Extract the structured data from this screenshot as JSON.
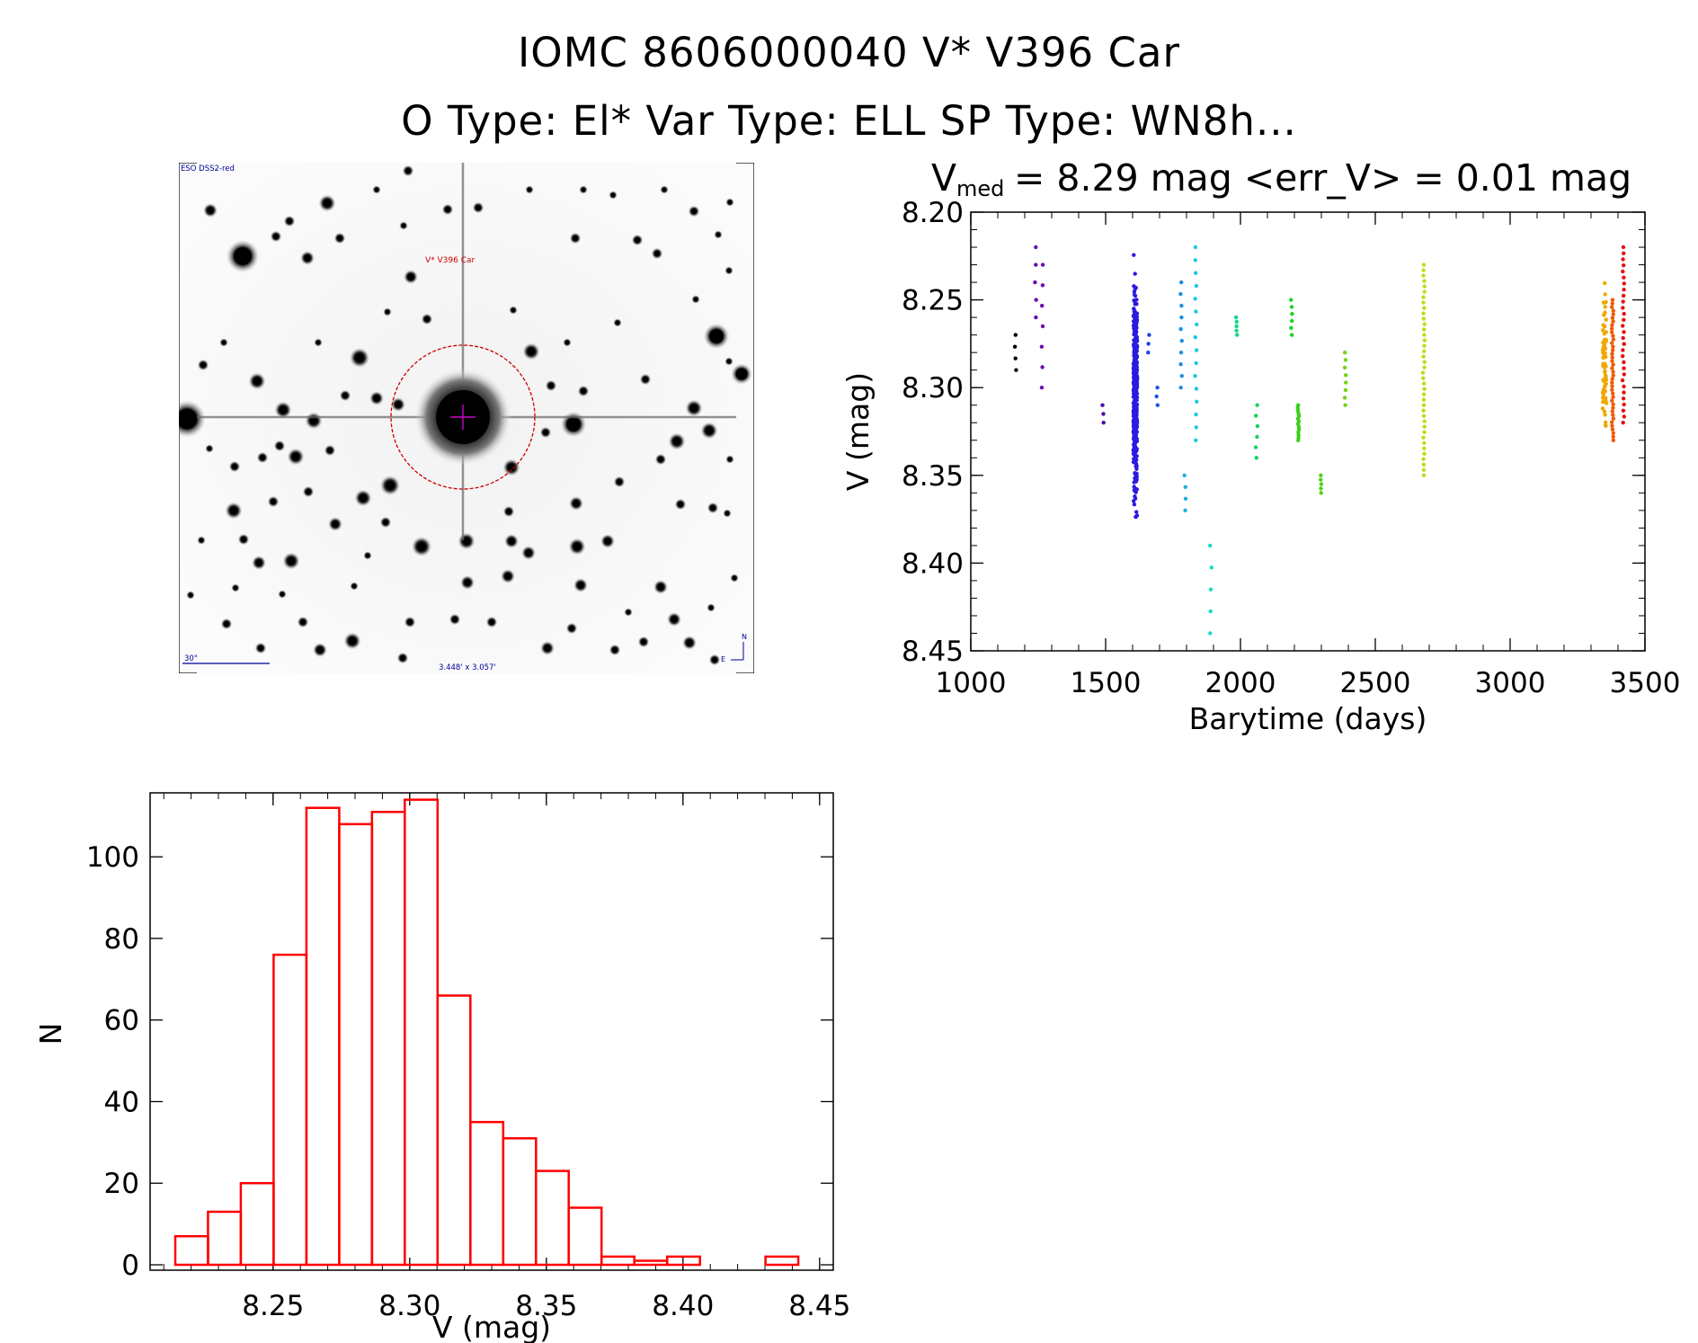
{
  "header": {
    "line1": "IOMC 8606000040    V* V396 Car",
    "line2": "O Type: El*   Var Type: ELL   SP Type: WN8h..."
  },
  "finder_chart": {
    "survey_label": "ESO DSS2-red",
    "target_label": "V* V396 Car",
    "scale_label": "30\"",
    "fov_label": "3.448' x 3.057'",
    "compass_n": "N",
    "compass_e": "E",
    "circle_color": "#cc0000",
    "crosshair_color": "#cc00cc",
    "label_color": "#000099"
  },
  "chart_data": [
    {
      "type": "scatter",
      "name": "light curve",
      "title_parts": {
        "prefix": "V",
        "subscript": "med",
        "rest": "= 8.29 mag <err_V> = 0.01 mag"
      },
      "xlabel": "Barytime (days)",
      "ylabel": "V (mag)",
      "xlim": [
        1000,
        3500
      ],
      "ylim": [
        8.45,
        8.2
      ],
      "y_inverted": true,
      "xticks": [
        1000,
        1500,
        2000,
        2500,
        3000,
        3500
      ],
      "yticks": [
        "8.20",
        "8.25",
        "8.30",
        "8.35",
        "8.40",
        "8.45"
      ],
      "color_by": "time (rainbow: purple to red)",
      "clusters": [
        {
          "x": 1165,
          "y_min": 8.27,
          "y_max": 8.29,
          "n": 4,
          "color": "#000000"
        },
        {
          "x": 1240,
          "y_min": 8.22,
          "y_max": 8.26,
          "n": 5,
          "color": "#6a0dad"
        },
        {
          "x": 1265,
          "y_min": 8.23,
          "y_max": 8.3,
          "n": 7,
          "color": "#6a0dad"
        },
        {
          "x": 1490,
          "y_min": 8.31,
          "y_max": 8.32,
          "n": 3,
          "color": "#4b0ca8"
        },
        {
          "x": 1610,
          "y_min": 8.22,
          "y_max": 8.39,
          "n": 420,
          "color": "#2c1adf"
        },
        {
          "x": 1660,
          "y_min": 8.27,
          "y_max": 8.28,
          "n": 3,
          "color": "#1d3fe0"
        },
        {
          "x": 1690,
          "y_min": 8.3,
          "y_max": 8.31,
          "n": 3,
          "color": "#1d55e0"
        },
        {
          "x": 1780,
          "y_min": 8.24,
          "y_max": 8.3,
          "n": 10,
          "color": "#1d8fe0"
        },
        {
          "x": 1795,
          "y_min": 8.35,
          "y_max": 8.37,
          "n": 4,
          "color": "#1dafe0"
        },
        {
          "x": 1835,
          "y_min": 8.22,
          "y_max": 8.33,
          "n": 16,
          "color": "#1ec8e8"
        },
        {
          "x": 1890,
          "y_min": 8.39,
          "y_max": 8.44,
          "n": 5,
          "color": "#12dcc8"
        },
        {
          "x": 1985,
          "y_min": 8.26,
          "y_max": 8.27,
          "n": 5,
          "color": "#12d88a"
        },
        {
          "x": 2060,
          "y_min": 8.31,
          "y_max": 8.34,
          "n": 6,
          "color": "#14d45a"
        },
        {
          "x": 2190,
          "y_min": 8.25,
          "y_max": 8.27,
          "n": 6,
          "color": "#22d122"
        },
        {
          "x": 2215,
          "y_min": 8.31,
          "y_max": 8.33,
          "n": 14,
          "color": "#38d21a"
        },
        {
          "x": 2300,
          "y_min": 8.35,
          "y_max": 8.36,
          "n": 5,
          "color": "#4ed21a"
        },
        {
          "x": 2390,
          "y_min": 8.28,
          "y_max": 8.31,
          "n": 8,
          "color": "#72d21a"
        },
        {
          "x": 2680,
          "y_min": 8.23,
          "y_max": 8.35,
          "n": 40,
          "color": "#b8e01a"
        },
        {
          "x": 3350,
          "y_min": 8.23,
          "y_max": 8.34,
          "n": 80,
          "color": "#f0a800"
        },
        {
          "x": 3380,
          "y_min": 8.25,
          "y_max": 8.33,
          "n": 40,
          "color": "#f05a00"
        },
        {
          "x": 3420,
          "y_min": 8.22,
          "y_max": 8.32,
          "n": 30,
          "color": "#e61010"
        }
      ]
    },
    {
      "type": "bar",
      "name": "histogram",
      "xlabel": "V (mag)",
      "ylabel": "N",
      "xlim": [
        8.205,
        8.455
      ],
      "ylim": [
        0,
        117
      ],
      "xticks": [
        "8.25",
        "8.30",
        "8.35",
        "8.40",
        "8.45"
      ],
      "yticks": [
        "0",
        "20",
        "40",
        "60",
        "80",
        "100"
      ],
      "bin_width": 0.012,
      "bin_starts": [
        8.2142,
        8.2262,
        8.2382,
        8.2502,
        8.2622,
        8.2742,
        8.2862,
        8.2982,
        8.3102,
        8.3222,
        8.3342,
        8.3462,
        8.3582,
        8.3702,
        8.3822,
        8.3942,
        8.4062,
        8.4182,
        8.4302
      ],
      "values": [
        7,
        13,
        20,
        76,
        112,
        108,
        111,
        114,
        66,
        35,
        31,
        23,
        14,
        2,
        1,
        2,
        0,
        0,
        2
      ],
      "color": "#ff0000"
    }
  ]
}
